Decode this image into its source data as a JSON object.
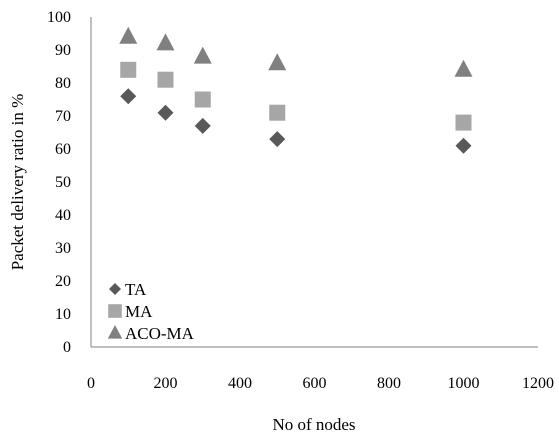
{
  "chart_data": {
    "type": "scatter",
    "xlabel": "No of nodes",
    "ylabel": "Packet delivery ratio in %",
    "xlim": [
      0,
      1200
    ],
    "ylim": [
      0,
      100
    ],
    "xticks": [
      "0",
      "200",
      "400",
      "600",
      "800",
      "1000",
      "1200"
    ],
    "yticks": [
      "0",
      "10",
      "20",
      "30",
      "40",
      "50",
      "60",
      "70",
      "80",
      "90",
      "100"
    ],
    "grid": false,
    "legend_position": "bottom-left",
    "series": [
      {
        "name": "TA",
        "marker": "diamond",
        "color": "#595959",
        "points": [
          {
            "x": 100,
            "y": 76
          },
          {
            "x": 200,
            "y": 71
          },
          {
            "x": 300,
            "y": 67
          },
          {
            "x": 500,
            "y": 63
          },
          {
            "x": 1000,
            "y": 61
          }
        ]
      },
      {
        "name": "MA",
        "marker": "square",
        "color": "#a6a6a6",
        "points": [
          {
            "x": 100,
            "y": 84
          },
          {
            "x": 200,
            "y": 81
          },
          {
            "x": 300,
            "y": 75
          },
          {
            "x": 500,
            "y": 71
          },
          {
            "x": 1000,
            "y": 68
          }
        ]
      },
      {
        "name": "ACO-MA",
        "marker": "triangle",
        "color": "#808080",
        "points": [
          {
            "x": 100,
            "y": 94
          },
          {
            "x": 200,
            "y": 92
          },
          {
            "x": 300,
            "y": 88
          },
          {
            "x": 500,
            "y": 86
          },
          {
            "x": 1000,
            "y": 84
          }
        ]
      }
    ]
  }
}
